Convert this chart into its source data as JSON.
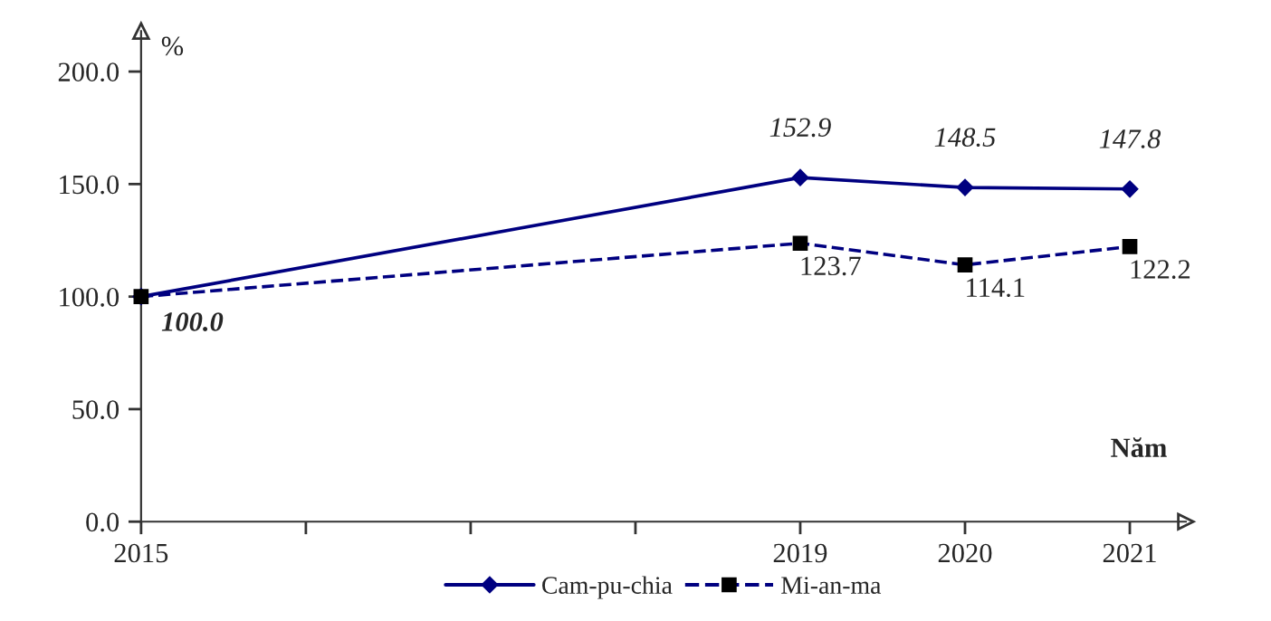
{
  "chart_data": {
    "type": "line",
    "xlabel": "Năm",
    "ylabel": "%",
    "x": [
      2015,
      2019,
      2020,
      2021
    ],
    "series": [
      {
        "name": "Cam-pu-chia",
        "color": "#000080",
        "marker": "diamond",
        "line_style": "solid",
        "values": [
          100.0,
          152.9,
          148.5,
          147.8
        ],
        "value_labels": [
          null,
          "152.9",
          "148.5",
          "147.8"
        ]
      },
      {
        "name": "Mi-an-ma",
        "color": "#000080",
        "marker": "square",
        "line_style": "dashed",
        "values": [
          100.0,
          123.7,
          114.1,
          122.2
        ],
        "value_labels": [
          "100.0",
          "123.7",
          "114.1",
          "122.2"
        ]
      }
    ],
    "xlim": [
      2015,
      2021.34
    ],
    "ylim": [
      0,
      218
    ],
    "xticks": [
      2015,
      {
        "value": 2016,
        "label": null
      },
      {
        "value": 2017,
        "label": null
      },
      {
        "value": 2018,
        "label": null
      },
      2019,
      2020,
      2021
    ],
    "yticks": [
      {
        "value": 0,
        "label": "0.0"
      },
      {
        "value": 50,
        "label": "50.0"
      },
      {
        "value": 100,
        "label": "100.0"
      },
      {
        "value": 150,
        "label": "150.0"
      },
      {
        "value": 200,
        "label": "200.0"
      }
    ],
    "grid": false,
    "legend": "bottom"
  }
}
